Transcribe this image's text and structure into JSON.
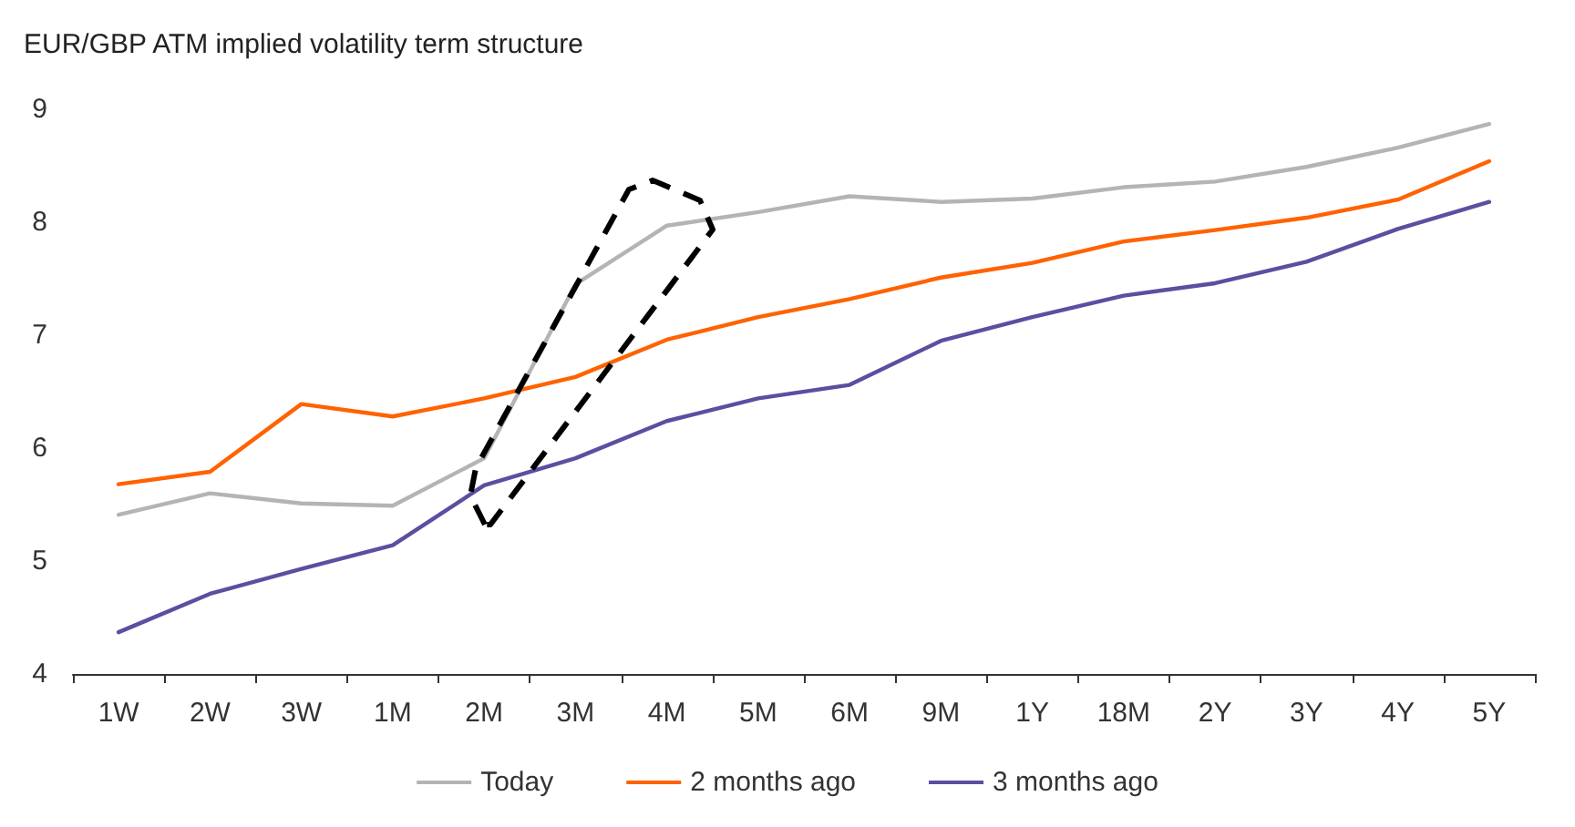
{
  "chart_data": {
    "type": "line",
    "title": "EUR/GBP ATM implied volatility term structure",
    "categories": [
      "1W",
      "2W",
      "3W",
      "1M",
      "2M",
      "3M",
      "4M",
      "5M",
      "6M",
      "9M",
      "1Y",
      "18M",
      "2Y",
      "3Y",
      "4Y",
      "5Y"
    ],
    "series": [
      {
        "name": "Today",
        "color": "#b4b4b4",
        "values": [
          5.41,
          5.6,
          5.51,
          5.49,
          5.91,
          7.45,
          7.97,
          8.09,
          8.23,
          8.18,
          8.21,
          8.31,
          8.36,
          8.49,
          8.66,
          8.87
        ]
      },
      {
        "name": "2 months ago",
        "color": "#ff6200",
        "values": [
          5.68,
          5.79,
          6.39,
          6.28,
          6.44,
          6.63,
          6.96,
          7.16,
          7.32,
          7.51,
          7.64,
          7.83,
          7.93,
          8.04,
          8.2,
          8.54
        ]
      },
      {
        "name": "3 months ago",
        "color": "#5a4fa0",
        "values": [
          4.37,
          4.71,
          4.93,
          5.14,
          5.67,
          5.91,
          6.24,
          6.44,
          6.56,
          6.95,
          7.16,
          7.35,
          7.46,
          7.65,
          7.94,
          8.18
        ]
      }
    ],
    "ylim": [
      4,
      9
    ],
    "yticks": [
      4,
      5,
      6,
      7,
      8,
      9
    ],
    "grid": false,
    "legend": "bottom",
    "marker": "none",
    "line_style": "solid"
  }
}
